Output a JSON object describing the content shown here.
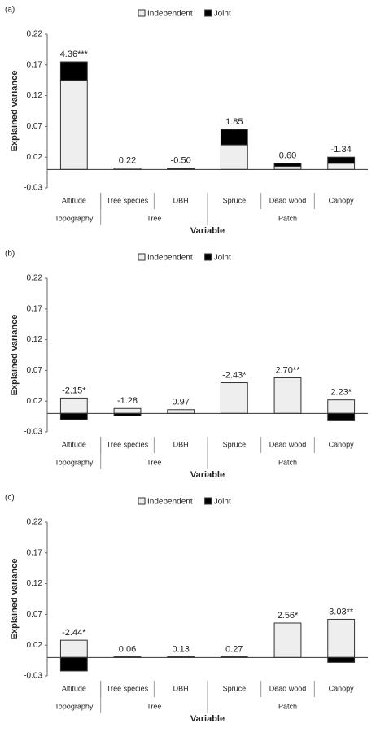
{
  "chart_data": [
    {
      "type": "bar",
      "stacked": true,
      "panel_label": "(a)",
      "ylabel": "Explained variance",
      "xlabel": "Variable",
      "categories": [
        "Altitude",
        "Tree species",
        "DBH",
        "Spruce",
        "Dead wood",
        "Canopy"
      ],
      "groups": [
        {
          "name": "Topography",
          "count": 1
        },
        {
          "name": "Tree",
          "count": 2
        },
        {
          "name": "Patch",
          "count": 3
        }
      ],
      "series": [
        {
          "name": "Independent",
          "color": "#eeeeee",
          "values": [
            0.145,
            0.002,
            0.001,
            0.04,
            0.005,
            0.01
          ]
        },
        {
          "name": "Joint",
          "color": "#000000",
          "values": [
            0.03,
            0.0,
            0.001,
            0.025,
            0.005,
            0.01
          ]
        }
      ],
      "annotations": [
        "4.36***",
        "0.22",
        "-0.50",
        "1.85",
        "0.60",
        "-1.34"
      ],
      "ylim": [
        -0.03,
        0.22
      ],
      "yticks": [
        -0.03,
        0.02,
        0.07,
        0.12,
        0.17,
        0.22
      ]
    },
    {
      "type": "bar",
      "stacked": true,
      "panel_label": "(b)",
      "ylabel": "Explained variance",
      "xlabel": "Variable",
      "categories": [
        "Altitude",
        "Tree species",
        "DBH",
        "Spruce",
        "Dead wood",
        "Canopy"
      ],
      "groups": [
        {
          "name": "Topography",
          "count": 1
        },
        {
          "name": "Tree",
          "count": 2
        },
        {
          "name": "Patch",
          "count": 3
        }
      ],
      "series": [
        {
          "name": "Independent",
          "color": "#eeeeee",
          "values": [
            0.025,
            0.008,
            0.006,
            0.05,
            0.058,
            0.022
          ]
        },
        {
          "name": "Joint",
          "color": "#000000",
          "values": [
            -0.01,
            -0.004,
            0.0,
            0.0,
            0.0,
            -0.012
          ]
        }
      ],
      "annotations": [
        "-2.15*",
        "-1.28",
        "0.97",
        "-2.43*",
        "2.70**",
        "2.23*"
      ],
      "ylim": [
        -0.03,
        0.22
      ],
      "yticks": [
        -0.03,
        0.02,
        0.07,
        0.12,
        0.17,
        0.22
      ]
    },
    {
      "type": "bar",
      "stacked": true,
      "panel_label": "(c)",
      "ylabel": "Explained variance",
      "xlabel": "Variable",
      "categories": [
        "Altitude",
        "Tree species",
        "DBH",
        "Spruce",
        "Dead wood",
        "Canopy"
      ],
      "groups": [
        {
          "name": "Topography",
          "count": 1
        },
        {
          "name": "Tree",
          "count": 2
        },
        {
          "name": "Patch",
          "count": 3
        }
      ],
      "series": [
        {
          "name": "Independent",
          "color": "#eeeeee",
          "values": [
            0.028,
            0.001,
            0.001,
            0.001,
            0.056,
            0.062
          ]
        },
        {
          "name": "Joint",
          "color": "#000000",
          "values": [
            -0.022,
            0.0,
            0.0,
            0.0,
            0.0,
            -0.008
          ]
        }
      ],
      "annotations": [
        "-2.44*",
        "0.06",
        "0.13",
        "0.27",
        "2.56*",
        "3.03**"
      ],
      "ylim": [
        -0.03,
        0.22
      ],
      "yticks": [
        -0.03,
        0.02,
        0.07,
        0.12,
        0.17,
        0.22
      ]
    }
  ]
}
